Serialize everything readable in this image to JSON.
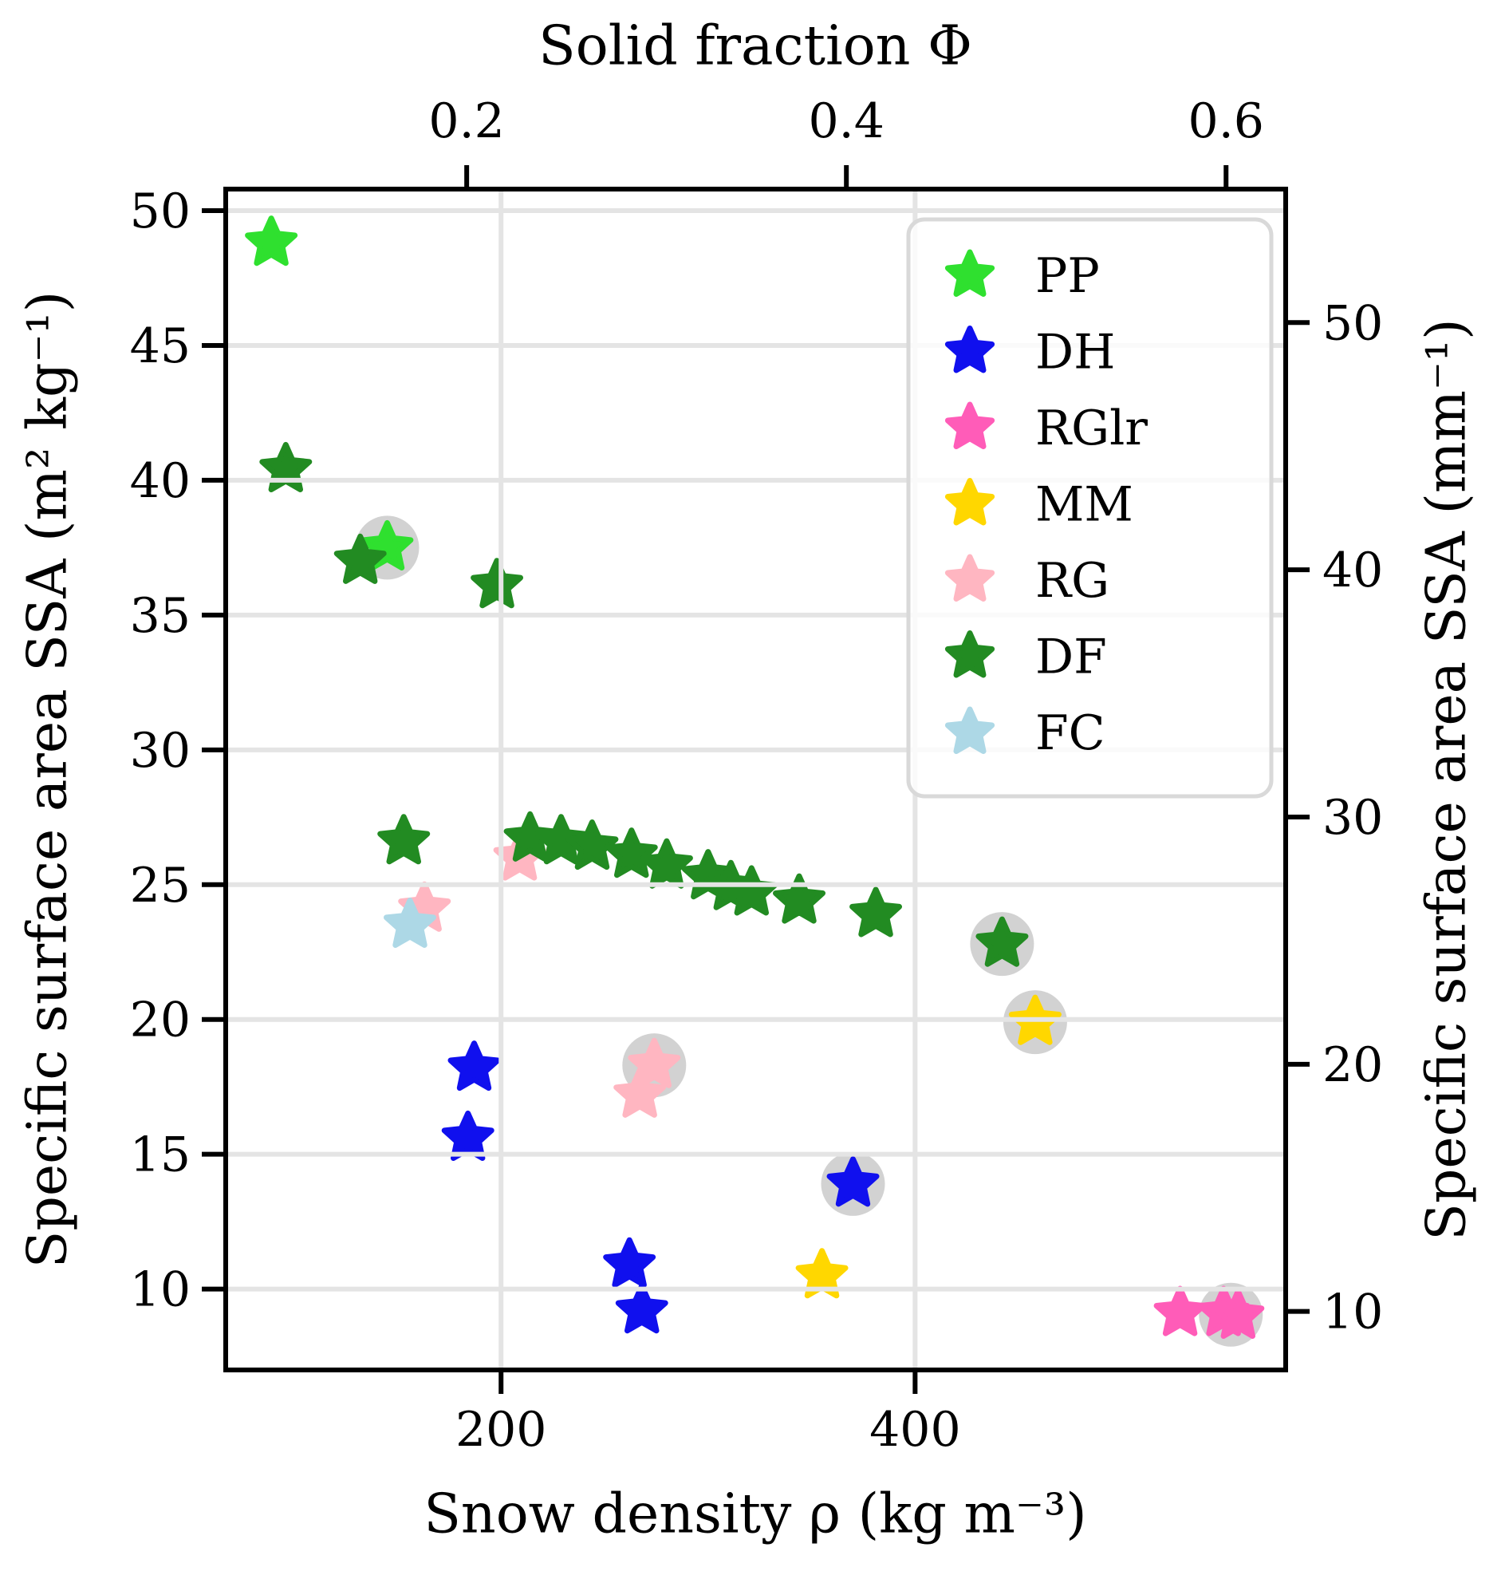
{
  "chart_data": {
    "type": "scatter",
    "title": "",
    "xlabel": "Snow density ρ (kg m⁻³)",
    "ylabel": "Specific surface area SSA (m² kg⁻¹)",
    "top_xlabel": "Solid fraction Φ",
    "right_ylabel": "Specific surface area SSA (mm⁻¹)",
    "xlim": [
      67,
      579
    ],
    "ylim": [
      7.0,
      50.8
    ],
    "grid": true,
    "marker": "star",
    "legend_position": "upper right",
    "ice_density": 917,
    "right_axis_factor": 0.917,
    "x_ticks": [
      {
        "value": 200,
        "label": "200"
      },
      {
        "value": 400,
        "label": "400"
      }
    ],
    "top_ticks": [
      {
        "value": 0.2,
        "label": "0.2"
      },
      {
        "value": 0.4,
        "label": "0.4"
      },
      {
        "value": 0.6,
        "label": "0.6"
      }
    ],
    "y_ticks": [
      {
        "value": 50,
        "label": "50"
      },
      {
        "value": 45,
        "label": "45"
      },
      {
        "value": 40,
        "label": "40"
      },
      {
        "value": 35,
        "label": "35"
      },
      {
        "value": 30,
        "label": "30"
      },
      {
        "value": 25,
        "label": "25"
      },
      {
        "value": 20,
        "label": "20"
      },
      {
        "value": 15,
        "label": "15"
      },
      {
        "value": 10,
        "label": "10"
      }
    ],
    "right_ticks": [
      {
        "value": 50,
        "label": "50"
      },
      {
        "value": 40,
        "label": "40"
      },
      {
        "value": 30,
        "label": "30"
      },
      {
        "value": 20,
        "label": "20"
      },
      {
        "value": 10,
        "label": "10"
      }
    ],
    "series": [
      {
        "name": "PP",
        "color": "#2fe02f",
        "points": [
          [
            89,
            48.8
          ],
          [
            145,
            37.5
          ]
        ]
      },
      {
        "name": "DH",
        "color": "#1010ee",
        "points": [
          [
            187,
            18.2
          ],
          [
            184,
            15.6
          ],
          [
            262,
            10.9
          ],
          [
            268,
            9.2
          ],
          [
            370,
            13.9
          ]
        ]
      },
      {
        "name": "RGlr",
        "color": "#ff5cb8",
        "points": [
          [
            528,
            9.1
          ],
          [
            549,
            9.1
          ],
          [
            556,
            9.0
          ]
        ]
      },
      {
        "name": "MM",
        "color": "#ffd700",
        "points": [
          [
            355,
            10.5
          ],
          [
            458,
            19.9
          ]
        ]
      },
      {
        "name": "RG",
        "color": "#ffb6c1",
        "points": [
          [
            209,
            26.0
          ],
          [
            163,
            24.1
          ],
          [
            274,
            18.3
          ],
          [
            267,
            17.2
          ]
        ]
      },
      {
        "name": "DF",
        "color": "#228b22",
        "points": [
          [
            96,
            40.4
          ],
          [
            132,
            37.0
          ],
          [
            198,
            36.1
          ],
          [
            153,
            26.6
          ],
          [
            214,
            26.7
          ],
          [
            229,
            26.6
          ],
          [
            244,
            26.4
          ],
          [
            263,
            26.1
          ],
          [
            280,
            25.7
          ],
          [
            300,
            25.3
          ],
          [
            311,
            24.9
          ],
          [
            321,
            24.7
          ],
          [
            344,
            24.4
          ],
          [
            381,
            23.9
          ],
          [
            442,
            22.8
          ]
        ]
      },
      {
        "name": "FC",
        "color": "#add8e6",
        "points": [
          [
            156,
            23.5
          ]
        ]
      }
    ],
    "highlighted_points": [
      [
        145,
        37.5
      ],
      [
        274,
        18.3
      ],
      [
        370,
        13.9
      ],
      [
        442,
        22.8
      ],
      [
        458,
        19.9
      ],
      [
        552.5,
        9.05
      ]
    ],
    "highlight_color": "#d2d2d2",
    "grid_color": "#e4e4e4",
    "frame_color": "#000000",
    "legend_background": "rgba(255,255,255,0.82)",
    "legend_border_color": "#d9d9d9"
  }
}
